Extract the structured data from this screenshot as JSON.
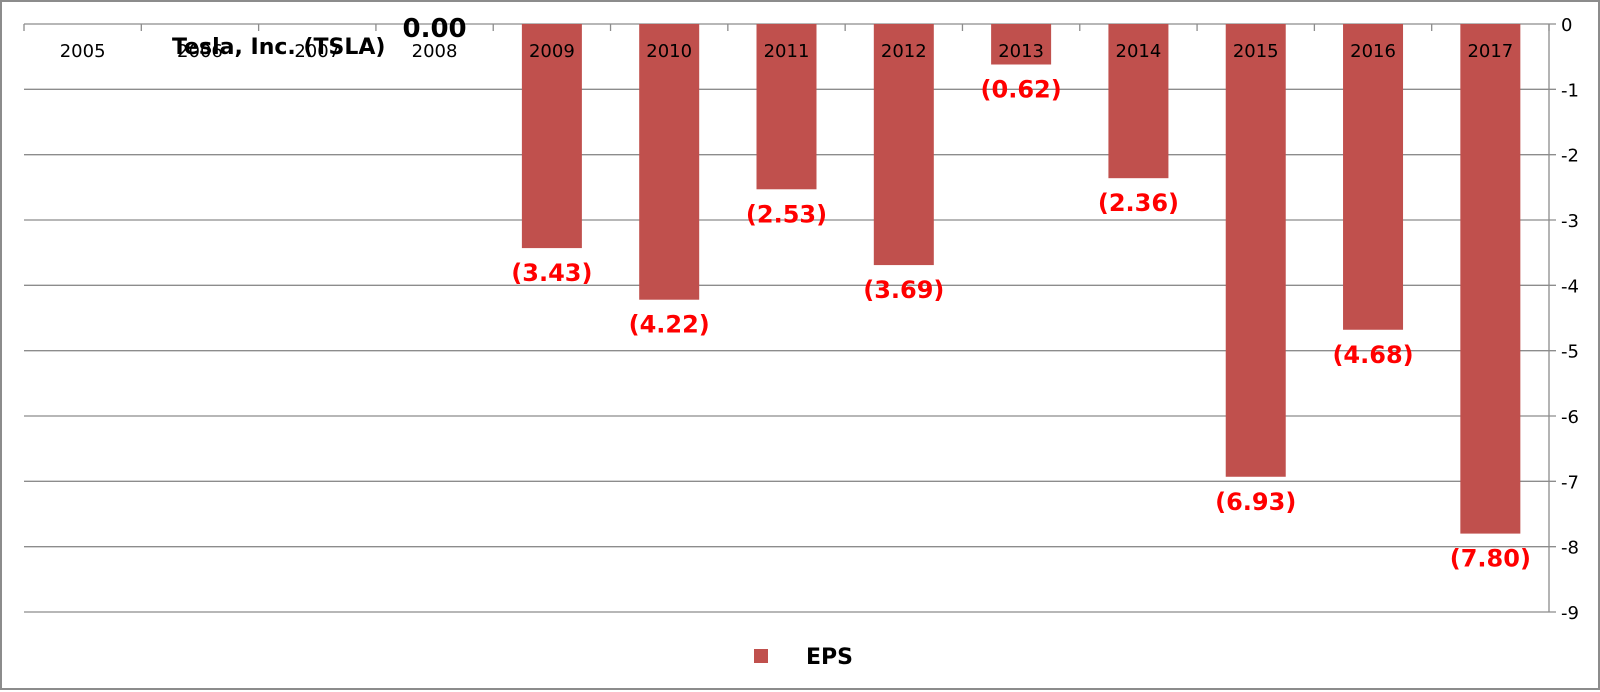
{
  "chart_data": {
    "type": "bar",
    "title": "Tesla, Inc. (TSLA)",
    "categories": [
      "2005",
      "2006",
      "2007",
      "2008",
      "2009",
      "2010",
      "2011",
      "2012",
      "2013",
      "2014",
      "2015",
      "2016",
      "2017"
    ],
    "series": [
      {
        "name": "EPS",
        "values": [
          0,
          0,
          0,
          0,
          -3.43,
          -4.22,
          -2.53,
          -3.69,
          -0.62,
          -2.36,
          -6.93,
          -4.68,
          -7.8
        ],
        "data_labels": [
          "",
          "",
          "",
          "0.00",
          "(3.43)",
          "(4.22)",
          "(2.53)",
          "(3.69)",
          "(0.62)",
          "(2.36)",
          "(6.93)",
          "(4.68)",
          "(7.80)"
        ]
      }
    ],
    "ylim": [
      -9,
      0
    ],
    "yticks": [
      0,
      -1,
      -2,
      -3,
      -4,
      -5,
      -6,
      -7,
      -8,
      -9
    ],
    "y_axis_side": "right",
    "x_axis_position": "top",
    "grid": true,
    "legend": "bottom",
    "colors": {
      "bar": "#c0504d",
      "data_label": "#ff0000",
      "grid": "#8c8c8c",
      "frame": "#8c8c8c"
    }
  }
}
